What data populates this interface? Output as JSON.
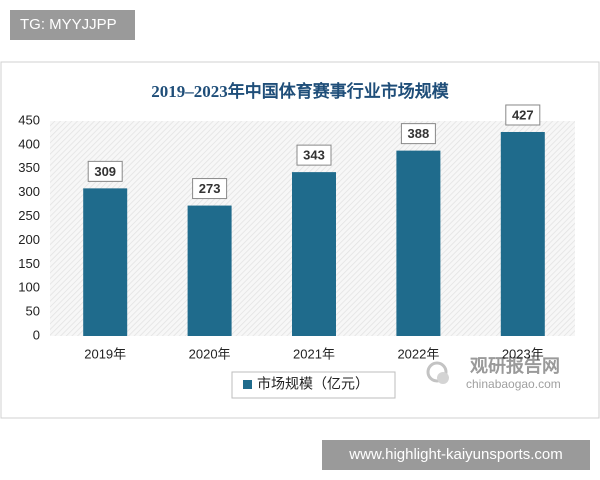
{
  "badge": "TG: MYYJJPP",
  "chart_data": {
    "type": "bar",
    "title": "2019–2023年中国体育赛事行业市场规模",
    "categories": [
      "2019年",
      "2020年",
      "2021年",
      "2022年",
      "2023年"
    ],
    "series": [
      {
        "name": "市场规模（亿元）",
        "color": "#1f6b8c",
        "values": [
          309,
          273,
          343,
          388,
          427
        ]
      }
    ],
    "ylim": [
      0,
      450
    ],
    "yticks": [
      0,
      50,
      100,
      150,
      200,
      250,
      300,
      350,
      400,
      450
    ],
    "grid": false
  },
  "watermark": {
    "name": "观研报告网",
    "site": "chinabaogao.com"
  },
  "footer": "www.highlight-kaiyunsports.com"
}
